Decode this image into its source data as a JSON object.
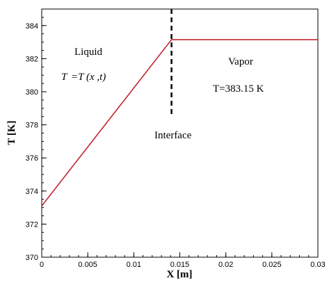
{
  "chart_data": {
    "type": "line",
    "xlabel": "X [m]",
    "ylabel": "T [K]",
    "xlim": [
      0,
      0.03
    ],
    "ylim": [
      370,
      385
    ],
    "xticks": [
      "0",
      "0.005",
      "0.01",
      "0.015",
      "0.02",
      "0.025",
      "0.03"
    ],
    "yticks": [
      "370",
      "372",
      "374",
      "376",
      "378",
      "380",
      "382",
      "384"
    ],
    "grid": false,
    "series": [
      {
        "color": "#c0272d",
        "x": [
          0,
          0.0141,
          0.03
        ],
        "y": [
          373.1,
          383.15,
          383.15
        ]
      }
    ],
    "interface_line": {
      "x": 0.0141,
      "y_from": 378.6,
      "y_to": 385,
      "style": "dashed",
      "color": "#000000"
    },
    "annotations": {
      "liquid_label": "Liquid",
      "liquid_eq_lhs": "T",
      "liquid_eq_rhs": "=T (x ,t)",
      "vapor_label": "Vapor",
      "vapor_eq": "T=383.15 K",
      "interface_label": "Interface"
    }
  }
}
